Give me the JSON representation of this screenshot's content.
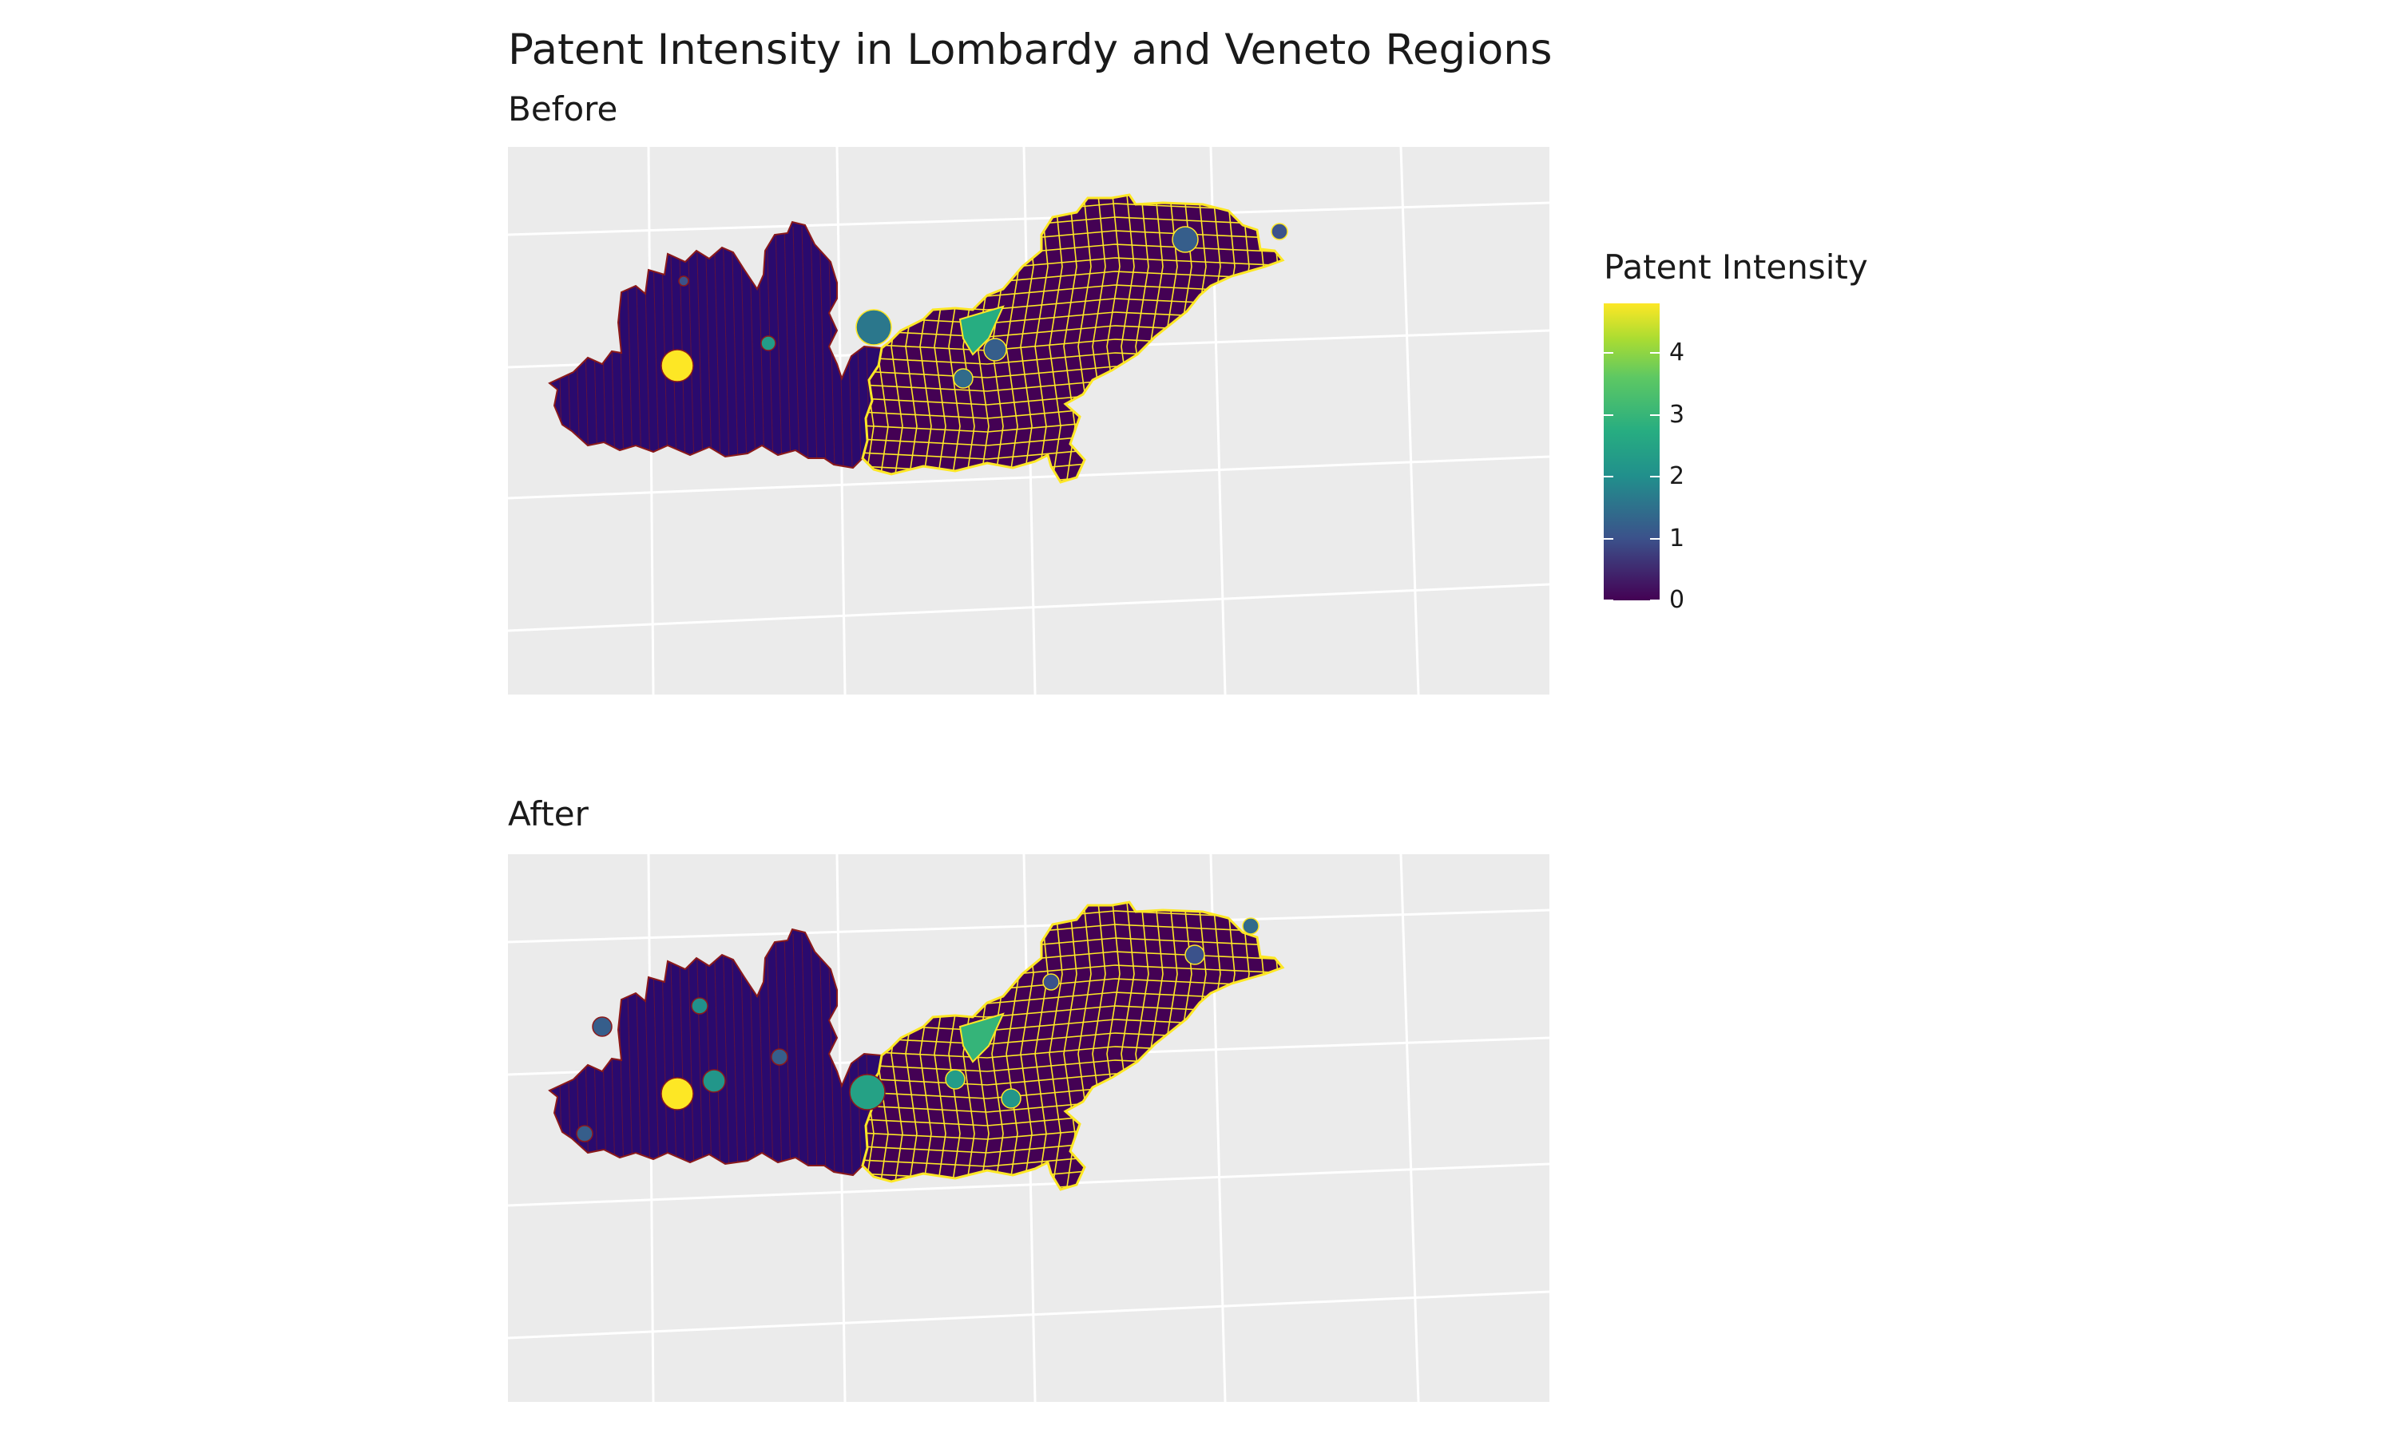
{
  "title": "Patent Intensity in Lombardy and Veneto Regions",
  "panels": [
    {
      "subtitle": "Before"
    },
    {
      "subtitle": "After"
    }
  ],
  "legend": {
    "title": "Patent Intensity",
    "ticks": [
      "0",
      "1",
      "2",
      "3",
      "4"
    ],
    "scale_max": 4.8,
    "colors": [
      "#440154",
      "#3b528b",
      "#21908c",
      "#5dc863",
      "#fde725"
    ]
  },
  "colors": {
    "lombardy_fill": "#2a0a6e",
    "lombardy_border": "#8b1a1a",
    "veneto_fill": "#440154",
    "veneto_border": "#fde725",
    "panel_background": "#ebebeb",
    "grid": "#ffffff"
  },
  "map_data": {
    "regions": [
      "Lombardy",
      "Veneto"
    ],
    "highlighted_areas": {
      "before": [
        {
          "region": "Lombardy",
          "value": 4.8
        },
        {
          "region": "Lombardy",
          "value": 2.4
        },
        {
          "region": "Lombardy",
          "value": 1.6
        },
        {
          "region": "Lombardy",
          "value": 1.4
        },
        {
          "region": "Veneto",
          "value": 3.0
        },
        {
          "region": "Veneto",
          "value": 2.0
        },
        {
          "region": "Veneto",
          "value": 1.2
        },
        {
          "region": "Veneto",
          "value": 1.0
        }
      ],
      "after": [
        {
          "region": "Lombardy",
          "value": 4.8
        },
        {
          "region": "Lombardy",
          "value": 2.6
        },
        {
          "region": "Lombardy",
          "value": 2.2
        },
        {
          "region": "Lombardy",
          "value": 2.0
        },
        {
          "region": "Lombardy",
          "value": 1.2
        },
        {
          "region": "Veneto",
          "value": 3.2
        },
        {
          "region": "Veneto",
          "value": 2.4
        },
        {
          "region": "Veneto",
          "value": 2.2
        },
        {
          "region": "Veneto",
          "value": 1.4
        },
        {
          "region": "Veneto",
          "value": 1.0
        }
      ]
    }
  }
}
